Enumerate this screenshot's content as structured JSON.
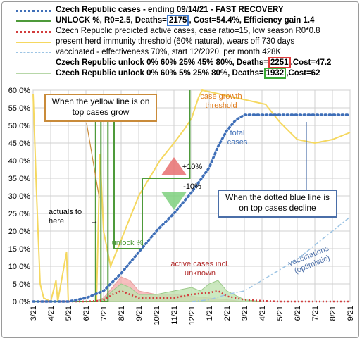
{
  "legend": {
    "row1": "Czech Republic cases - ending 09/14/21 - FAST RECOVERY",
    "row2_pre": "UNLOCK %, R0=2.5,  Deaths=",
    "row2_deaths": "2175",
    "row2_post": ", Cost=54.4%, Efficiency gain 1.4",
    "row3": "Czech Republic predicted active cases, case ratio=15, low season R0*0.8",
    "row4": "present herd immunity threshold (60% natural), wears off 730 days",
    "row5": "vaccinated - effectiveness 70%, start 12/2020, per month 428K",
    "row6_pre": "Czech Republic unlock 0% 60% 25% 45% 80%,  Deaths=",
    "row6_deaths": "2251",
    "row6_post": ",Cost=47.2",
    "row7_pre": "Czech Republic unlock 0% 60% 5% 25% 80%,  Deaths=",
    "row7_deaths": "1932",
    "row7_post": ",Cost=62"
  },
  "annotations": {
    "yellow_callout": "When the yellow line is on top cases grow",
    "blue_callout": "When the dotted blue line is on top cases decline",
    "case_growth": "case growth threshold",
    "total_cases": "total cases",
    "actuals": "actuals to here",
    "actuals_arrow": "→",
    "unlock": "unlock %",
    "active_cases": "active cases incl. unknown",
    "vaccinations": "vaccinations (optimistic)",
    "plus10": "+10%",
    "minus10": "-10%"
  },
  "colors": {
    "total_cases": "#3f6fb8",
    "unlock": "#4e9a3a",
    "predicted_active": "#d23c3c",
    "herd_threshold": "#f5d860",
    "vaccinated": "#9cc4e4",
    "unlock_alt1_fill": "#f4a9a9",
    "unlock_alt2_fill": "#bfe3b0",
    "callout_border": "#4a6ea8",
    "orange_text": "#e07b1a",
    "yellow_border": "#c98b3a"
  },
  "chart_data": {
    "type": "line",
    "x_ticks": [
      "3/21",
      "4/21",
      "5/21",
      "6/21",
      "7/21",
      "8/21",
      "9/21",
      "10/21",
      "11/21",
      "12/21",
      "1/21",
      "2/21",
      "3/21",
      "4/21",
      "5/21",
      "6/21",
      "7/21",
      "8/21",
      "9/21"
    ],
    "y_ticks": [
      "0.0%",
      "5.0%",
      "10.0%",
      "15.0%",
      "20.0%",
      "25.0%",
      "30.0%",
      "35.0%",
      "40.0%",
      "45.0%",
      "50.0%",
      "55.0%",
      "60.0%"
    ],
    "ylim": [
      0,
      60
    ],
    "xlim": [
      0,
      18
    ],
    "series": [
      {
        "name": "Czech Republic cases - ending 09/14/21 - FAST RECOVERY",
        "style": "dotted",
        "points": [
          [
            0,
            0
          ],
          [
            2,
            0
          ],
          [
            3,
            1
          ],
          [
            4,
            3
          ],
          [
            5,
            8
          ],
          [
            6,
            14
          ],
          [
            7,
            20
          ],
          [
            8,
            25
          ],
          [
            9,
            31
          ],
          [
            10,
            38
          ],
          [
            10.5,
            44
          ],
          [
            11,
            48.5
          ],
          [
            11.5,
            51.5
          ],
          [
            12,
            53
          ],
          [
            13,
            53
          ],
          [
            14,
            53
          ],
          [
            15,
            53
          ],
          [
            16,
            53
          ],
          [
            17,
            53
          ],
          [
            18,
            53
          ]
        ]
      },
      {
        "name": "UNLOCK %",
        "style": "step",
        "points": [
          [
            0,
            0
          ],
          [
            3.55,
            0
          ],
          [
            3.55,
            51.5
          ],
          [
            3.85,
            51.5
          ],
          [
            3.85,
            0
          ],
          [
            4.25,
            0
          ],
          [
            4.25,
            51.5
          ],
          [
            4.6,
            51.5
          ],
          [
            4.6,
            15
          ],
          [
            6.2,
            15
          ],
          [
            6.2,
            35
          ],
          [
            7.5,
            35
          ],
          [
            7.5,
            35
          ],
          [
            8.9,
            35
          ],
          [
            8.9,
            60
          ]
        ]
      },
      {
        "name": "Czech Republic predicted active cases",
        "style": "dotted",
        "points": [
          [
            0,
            0
          ],
          [
            3,
            0
          ],
          [
            4,
            0.3
          ],
          [
            4.5,
            2
          ],
          [
            5,
            3
          ],
          [
            5.5,
            2
          ],
          [
            6,
            1
          ],
          [
            7,
            1
          ],
          [
            8,
            1
          ],
          [
            9,
            2
          ],
          [
            10,
            2.5
          ],
          [
            10.5,
            3
          ],
          [
            11,
            1.5
          ],
          [
            12,
            0.5
          ],
          [
            13,
            0.2
          ],
          [
            14,
            0
          ],
          [
            18,
            0
          ]
        ]
      },
      {
        "name": "present herd immunity threshold",
        "style": "line",
        "points": [
          [
            0,
            59
          ],
          [
            0.2,
            30
          ],
          [
            0.4,
            5
          ],
          [
            0.6,
            1
          ],
          [
            1,
            0
          ],
          [
            1.3,
            6
          ],
          [
            1.4,
            0
          ],
          [
            1.9,
            14
          ],
          [
            2.0,
            0
          ],
          [
            3.6,
            0
          ],
          [
            3.8,
            42
          ],
          [
            4.0,
            20
          ],
          [
            4.4,
            10
          ],
          [
            4.8,
            15
          ],
          [
            5.2,
            20
          ],
          [
            5.6,
            25
          ],
          [
            6,
            30
          ],
          [
            6.6,
            35
          ],
          [
            7.2,
            40
          ],
          [
            8,
            45
          ],
          [
            8.6,
            49
          ],
          [
            9,
            52
          ],
          [
            9.4,
            58
          ],
          [
            9.6,
            60
          ],
          [
            13.2,
            56
          ],
          [
            14,
            51
          ],
          [
            15,
            46
          ],
          [
            16,
            45
          ],
          [
            17,
            46
          ],
          [
            18,
            48
          ]
        ]
      },
      {
        "name": "vaccinated",
        "style": "dash-dot",
        "points": [
          [
            9,
            0
          ],
          [
            10,
            0.5
          ],
          [
            11,
            2
          ],
          [
            12,
            3
          ],
          [
            13,
            6
          ],
          [
            14,
            9
          ],
          [
            15,
            12
          ],
          [
            16,
            16
          ],
          [
            17,
            20
          ],
          [
            18,
            24
          ]
        ]
      },
      {
        "name": "Czech Republic unlock 0% 60% 25% 45% 80%",
        "style": "area",
        "points": [
          [
            3.5,
            0
          ],
          [
            4,
            1
          ],
          [
            4.5,
            4
          ],
          [
            5,
            7
          ],
          [
            5.5,
            6
          ],
          [
            6,
            3
          ],
          [
            7,
            2
          ],
          [
            8,
            2
          ],
          [
            9,
            1.5
          ],
          [
            10,
            1
          ],
          [
            11,
            0.5
          ],
          [
            12,
            0
          ]
        ]
      },
      {
        "name": "Czech Republic unlock 0% 60% 5% 25% 80%",
        "style": "area",
        "points": [
          [
            3.5,
            0
          ],
          [
            4,
            0.5
          ],
          [
            4.5,
            3
          ],
          [
            5,
            5
          ],
          [
            5.5,
            4
          ],
          [
            6,
            2
          ],
          [
            7,
            2
          ],
          [
            8,
            3
          ],
          [
            9,
            4
          ],
          [
            9.5,
            3
          ],
          [
            10,
            5
          ],
          [
            10.5,
            6
          ],
          [
            11,
            3
          ],
          [
            12,
            0.5
          ],
          [
            13,
            0
          ]
        ]
      }
    ]
  }
}
